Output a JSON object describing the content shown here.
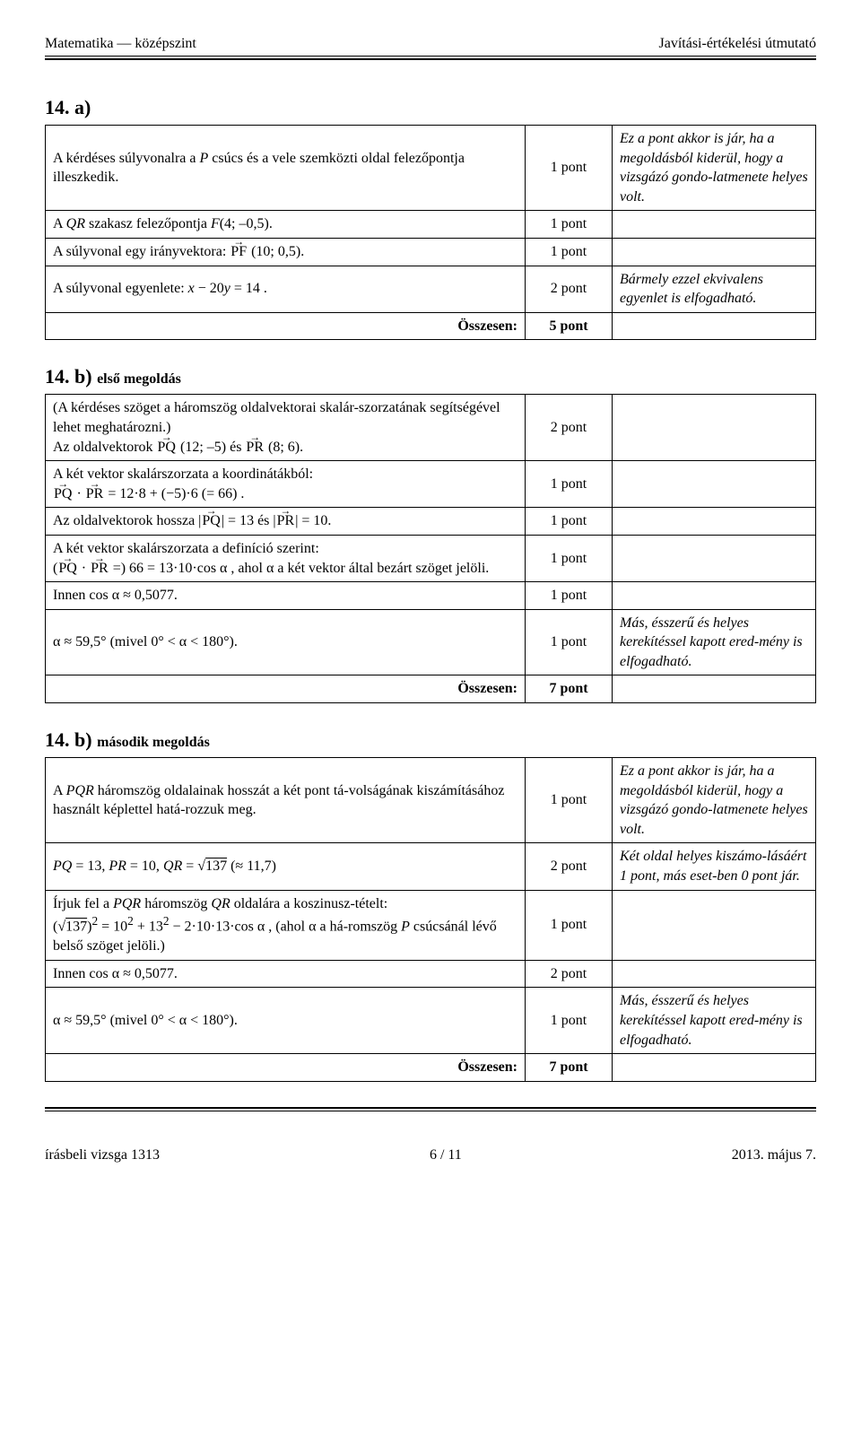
{
  "header": {
    "left": "Matematika — középszint",
    "right": "Javítási-értékelési útmutató"
  },
  "sec14a": {
    "title": "14. a)",
    "rows": [
      {
        "desc_html": "A kérdéses súlyvonalra a <span class='ital'>P</span> csúcs és a vele szemközti oldal felezőpontja illeszkedik.",
        "pts": "1 pont",
        "note": "Ez a pont akkor is jár, ha a megoldásból kiderül, hogy a vizsgázó gondo-latmenete helyes volt."
      },
      {
        "desc_html": "A <span class='ital'>QR</span> szakasz felezőpontja <span class='ital'>F</span>(4; –0,5).",
        "pts": "1 pont",
        "note": ""
      },
      {
        "desc_html": "A súlyvonal egy irányvektora: <span class='vec'>PF</span> (10; 0,5).",
        "pts": "1 pont",
        "note": ""
      },
      {
        "desc_html": "A súlyvonal egyenlete: <span class='ital'>x</span> − 20<span class='ital'>y</span> = 14 .",
        "pts": "2 pont",
        "note": "Bármely ezzel ekvivalens egyenlet is elfogadható."
      },
      {
        "desc_html": "Összesen:",
        "pts": "5 pont",
        "note": "",
        "total": true
      }
    ]
  },
  "sec14b1": {
    "title": "14. b)",
    "sub": "első megoldás",
    "rows": [
      {
        "desc_html": "(A kérdéses szöget a háromszög oldalvektorai skalár-szorzatának segítségével lehet meghatározni.)<br>Az oldalvektorok <span class='vec'>PQ</span> (12; –5) és <span class='vec'>PR</span> (8; 6).",
        "pts": "2 pont",
        "note": ""
      },
      {
        "desc_html": "A két vektor skalárszorzata a koordinátákból:<br><span class='vec'>PQ</span> · <span class='vec'>PR</span> = 12·8 + (−5)·6 (= 66) .",
        "pts": "1 pont",
        "note": ""
      },
      {
        "desc_html": "Az oldalvektorok hossza |<span class='vec'>PQ</span>| = 13 és |<span class='vec'>PR</span>| = 10.",
        "pts": "1 pont",
        "note": ""
      },
      {
        "desc_html": "A két vektor skalárszorzata a definíció szerint:<br>(<span class='vec'>PQ</span> · <span class='vec'>PR</span> =) 66 = 13·10·cos α , ahol α a két vektor által bezárt szöget jelöli.",
        "pts": "1 pont",
        "note": ""
      },
      {
        "desc_html": "Innen cos α ≈ 0,5077.",
        "pts": "1 pont",
        "note": ""
      },
      {
        "desc_html": "α ≈ 59,5° (mivel 0° &lt; α &lt; 180°).",
        "pts": "1 pont",
        "note": "Más, ésszerű és helyes kerekítéssel kapott ered-mény is elfogadható."
      },
      {
        "desc_html": "Összesen:",
        "pts": "7 pont",
        "note": "",
        "total": true
      }
    ]
  },
  "sec14b2": {
    "title": "14. b)",
    "sub": "második megoldás",
    "rows": [
      {
        "desc_html": "A <span class='ital'>PQR</span> háromszög oldalainak hosszát a két pont tá-volságának kiszámításához használt képlettel hatá-rozzuk meg.",
        "pts": "1 pont",
        "note": "Ez a pont akkor is jár, ha a megoldásból kiderül, hogy a vizsgázó gondo-latmenete helyes volt."
      },
      {
        "desc_html": "<span class='ital'>PQ</span> = 13, <span class='ital'>PR</span> = 10, <span class='ital'>QR</span> = √<span class='sqrt'>137</span> (≈ 11,7)",
        "pts": "2 pont",
        "note": "Két oldal helyes kiszámo-lásáért 1 pont, más eset-ben 0 pont jár."
      },
      {
        "desc_html": "Írjuk fel a <span class='ital'>PQR</span> háromszög <span class='ital'>QR</span> oldalára a koszinusz-tételt:<br>(√<span class='sqrt'>137</span>)<sup>2</sup> = 10<sup>2</sup> + 13<sup>2</sup> − 2·10·13·cos α , (ahol α a há-romszög <span class='ital'>P</span> csúcsánál lévő belső szöget jelöli.)",
        "pts": "1 pont",
        "note": ""
      },
      {
        "desc_html": "Innen cos α ≈ 0,5077.",
        "pts": "2 pont",
        "note": ""
      },
      {
        "desc_html": "α ≈ 59,5° (mivel 0° &lt; α &lt; 180°).",
        "pts": "1 pont",
        "note": "Más, ésszerű és helyes kerekítéssel kapott ered-mény is elfogadható."
      },
      {
        "desc_html": "Összesen:",
        "pts": "7 pont",
        "note": "",
        "total": true
      }
    ]
  },
  "footer": {
    "left": "írásbeli vizsga 1313",
    "center": "6 / 11",
    "right": "2013. május 7."
  }
}
